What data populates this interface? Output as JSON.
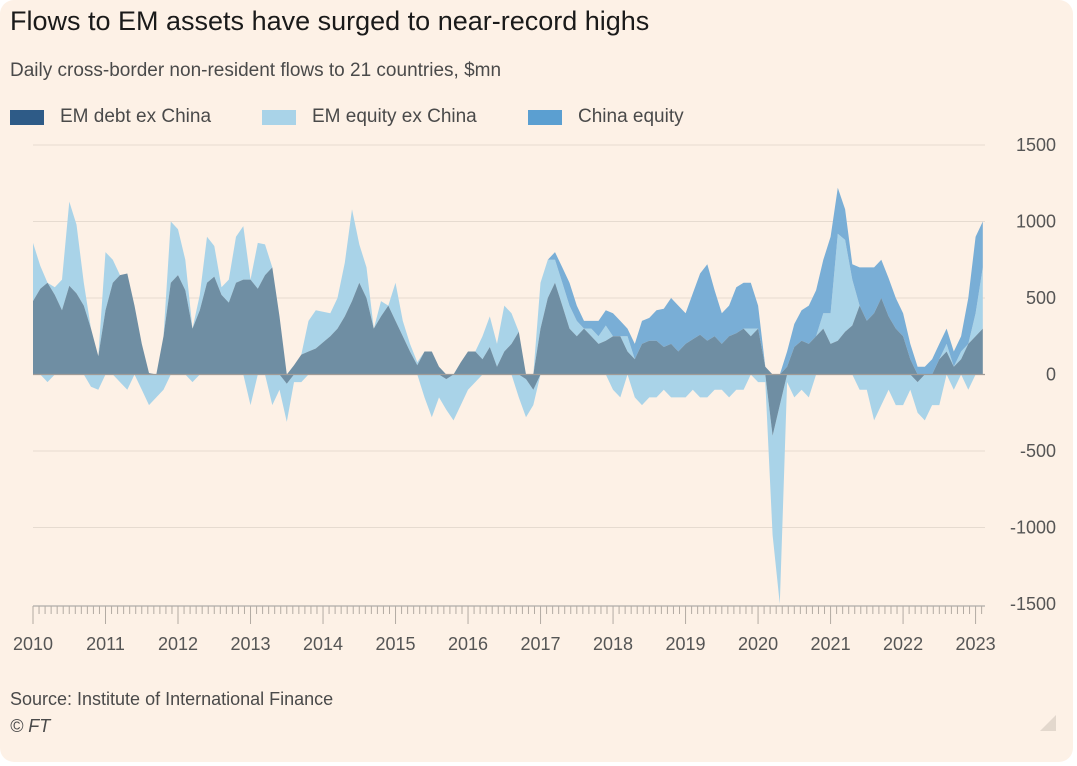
{
  "header": {
    "title": "Flows to EM assets have surged to near-record highs",
    "subtitle": "Daily cross-border non-resident flows to 21 countries, $mn"
  },
  "legend": {
    "items": [
      {
        "label": "EM debt ex China",
        "color": "#2e5b87"
      },
      {
        "label": "EM equity ex China",
        "color": "#a9d3e8"
      },
      {
        "label": "China equity",
        "color": "#5b9fd1"
      }
    ]
  },
  "footer": {
    "source": "Source: Institute of International Finance",
    "credit": "© FT"
  },
  "colors": {
    "background": "#fdf1e6",
    "grid": "#e6dbd0",
    "zero_line": "#a09c98",
    "debt": "#6f8ea3",
    "equity": "#a9d3e8",
    "china": "#79aed6"
  },
  "chart_data": {
    "type": "area",
    "stacked": true,
    "title": "Flows to EM assets have surged to near-record highs",
    "subtitle": "Daily cross-border non-resident flows to 21 countries, $mn",
    "xlabel": "",
    "ylabel": "",
    "xlim": [
      2010.0,
      2023.13
    ],
    "ylim": [
      -1500,
      1500
    ],
    "y_ticks": [
      1500,
      1000,
      500,
      0,
      -500,
      -1000,
      -1500
    ],
    "x_ticks": [
      "2010",
      "2011",
      "2012",
      "2013",
      "2014",
      "2015",
      "2016",
      "2017",
      "2018",
      "2019",
      "2020",
      "2021",
      "2022",
      "2023"
    ],
    "grid": true,
    "legend_position": "top-left",
    "x": [
      2010.0,
      2010.1,
      2010.2,
      2010.3,
      2010.4,
      2010.5,
      2010.6,
      2010.7,
      2010.8,
      2010.9,
      2011.0,
      2011.1,
      2011.2,
      2011.3,
      2011.4,
      2011.5,
      2011.6,
      2011.7,
      2011.8,
      2011.9,
      2012.0,
      2012.1,
      2012.2,
      2012.3,
      2012.4,
      2012.5,
      2012.6,
      2012.7,
      2012.8,
      2012.9,
      2013.0,
      2013.1,
      2013.2,
      2013.3,
      2013.4,
      2013.5,
      2013.6,
      2013.7,
      2013.8,
      2013.9,
      2014.0,
      2014.1,
      2014.2,
      2014.3,
      2014.4,
      2014.5,
      2014.6,
      2014.7,
      2014.8,
      2014.9,
      2015.0,
      2015.1,
      2015.2,
      2015.3,
      2015.4,
      2015.5,
      2015.6,
      2015.7,
      2015.8,
      2015.9,
      2016.0,
      2016.1,
      2016.2,
      2016.3,
      2016.4,
      2016.5,
      2016.6,
      2016.7,
      2016.8,
      2016.9,
      2017.0,
      2017.1,
      2017.2,
      2017.3,
      2017.4,
      2017.5,
      2017.6,
      2017.7,
      2017.8,
      2017.9,
      2018.0,
      2018.1,
      2018.2,
      2018.3,
      2018.4,
      2018.5,
      2018.6,
      2018.7,
      2018.8,
      2018.9,
      2019.0,
      2019.1,
      2019.2,
      2019.3,
      2019.4,
      2019.5,
      2019.6,
      2019.7,
      2019.8,
      2019.9,
      2020.0,
      2020.1,
      2020.2,
      2020.3,
      2020.4,
      2020.5,
      2020.6,
      2020.7,
      2020.8,
      2020.9,
      2021.0,
      2021.1,
      2021.2,
      2021.3,
      2021.4,
      2021.5,
      2021.6,
      2021.7,
      2021.8,
      2021.9,
      2022.0,
      2022.1,
      2022.2,
      2022.3,
      2022.4,
      2022.5,
      2022.6,
      2022.7,
      2022.8,
      2022.9,
      2023.0,
      2023.1
    ],
    "series": [
      {
        "name": "EM debt ex China",
        "color": "#2e5b87",
        "values": [
          480,
          560,
          600,
          520,
          420,
          580,
          530,
          450,
          300,
          120,
          420,
          600,
          650,
          660,
          450,
          200,
          10,
          0,
          250,
          600,
          650,
          550,
          300,
          420,
          600,
          640,
          520,
          470,
          600,
          620,
          620,
          560,
          650,
          700,
          380,
          -60,
          60,
          130,
          150,
          170,
          210,
          250,
          300,
          380,
          480,
          600,
          500,
          300,
          380,
          450,
          350,
          250,
          150,
          60,
          150,
          150,
          50,
          -30,
          0,
          80,
          150,
          150,
          100,
          180,
          50,
          150,
          200,
          280,
          -30,
          -100,
          300,
          500,
          600,
          450,
          300,
          250,
          300,
          250,
          200,
          220,
          250,
          250,
          150,
          100,
          200,
          220,
          220,
          180,
          200,
          150,
          200,
          230,
          260,
          220,
          250,
          200,
          250,
          270,
          300,
          250,
          300,
          50,
          -400,
          -200,
          50,
          180,
          220,
          200,
          250,
          300,
          200,
          220,
          280,
          320,
          450,
          350,
          400,
          500,
          380,
          300,
          250,
          100,
          -50,
          0,
          0,
          100,
          150,
          50,
          100,
          200,
          250,
          300
        ]
      },
      {
        "name": "EM equity ex China",
        "color": "#a9d3e8",
        "values": [
          380,
          150,
          -50,
          50,
          200,
          550,
          450,
          150,
          -80,
          -100,
          380,
          150,
          -50,
          -100,
          0,
          -100,
          -200,
          -150,
          -100,
          400,
          300,
          200,
          -50,
          100,
          300,
          200,
          50,
          150,
          300,
          350,
          -200,
          300,
          200,
          -200,
          -100,
          -250,
          -50,
          -50,
          200,
          250,
          200,
          150,
          200,
          350,
          600,
          250,
          200,
          0,
          100,
          0,
          250,
          100,
          50,
          20,
          -150,
          -280,
          -150,
          -200,
          -300,
          -200,
          -100,
          -50,
          150,
          200,
          150,
          300,
          200,
          -150,
          -250,
          -100,
          300,
          250,
          150,
          150,
          150,
          100,
          0,
          50,
          50,
          100,
          -100,
          -150,
          100,
          -150,
          -200,
          -150,
          -150,
          -100,
          -150,
          -150,
          -150,
          -100,
          -150,
          -150,
          -100,
          -100,
          -150,
          -100,
          -100,
          50,
          -50,
          -50,
          -650,
          -1300,
          -50,
          -150,
          -100,
          -150,
          0,
          100,
          200,
          700,
          600,
          300,
          -100,
          -100,
          -300,
          -200,
          -100,
          -200,
          -200,
          -100,
          -200,
          -300,
          -200,
          -200,
          50,
          -100,
          50,
          -100,
          150,
          400
        ]
      },
      {
        "name": "China equity",
        "color": "#5b9fd1",
        "values": [
          0,
          0,
          0,
          0,
          0,
          0,
          0,
          0,
          0,
          0,
          0,
          0,
          0,
          0,
          0,
          0,
          0,
          0,
          0,
          0,
          0,
          0,
          0,
          0,
          0,
          0,
          0,
          0,
          0,
          0,
          0,
          0,
          0,
          0,
          0,
          0,
          0,
          0,
          0,
          0,
          0,
          0,
          0,
          0,
          0,
          0,
          0,
          0,
          0,
          0,
          0,
          0,
          0,
          0,
          0,
          0,
          0,
          0,
          0,
          0,
          0,
          0,
          0,
          0,
          0,
          0,
          0,
          0,
          0,
          0,
          0,
          0,
          50,
          100,
          150,
          100,
          50,
          50,
          100,
          100,
          150,
          100,
          50,
          100,
          150,
          150,
          200,
          250,
          300,
          300,
          200,
          300,
          400,
          500,
          300,
          200,
          200,
          300,
          300,
          300,
          150,
          0,
          0,
          0,
          100,
          150,
          200,
          250,
          300,
          350,
          500,
          300,
          200,
          100,
          250,
          350,
          300,
          250,
          250,
          200,
          150,
          100,
          50,
          50,
          100,
          100,
          100,
          100,
          100,
          300,
          500,
          300
        ]
      }
    ]
  }
}
